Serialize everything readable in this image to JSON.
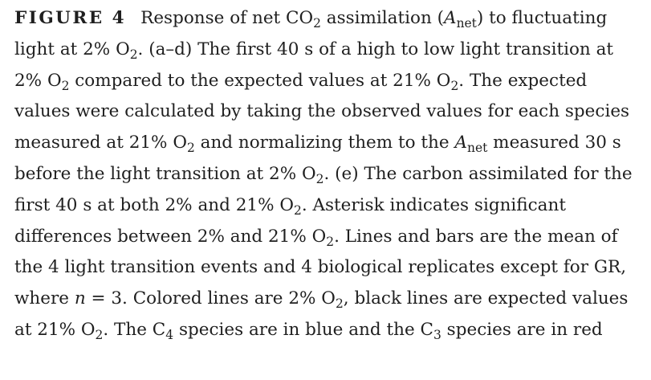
{
  "caption": {
    "figure_label": "FIGURE 4",
    "segments": [
      "Response of net CO",
      "2",
      " assimilation (",
      "A",
      "net",
      ") to fluctuating light at 2% O",
      "2",
      ". (a–d) The first 40 s of a high to low light transition at 2% O",
      "2",
      " compared to the expected values at 21% O",
      "2",
      ". The expected values were calculated by taking the observed values for each species measured at 21% O",
      "2",
      " and normalizing them to the ",
      "A",
      "net",
      " measured 30 s before the light transition at 2% O",
      "2",
      ". (e) The carbon assimilated for the first 40 s at both 2% and 21% O",
      "2",
      ". Asterisk indicates significant differences between 2% and 21% O",
      "2",
      ". Lines and bars are the mean of the 4 light transition events and 4 biological replicates except for GR, where ",
      "n",
      " = 3. Colored lines are 2% O",
      "2",
      ", black lines are expected values at 21% O",
      "2",
      ". The C",
      "4",
      " species are in blue and the C",
      "3",
      " species are in red"
    ]
  }
}
